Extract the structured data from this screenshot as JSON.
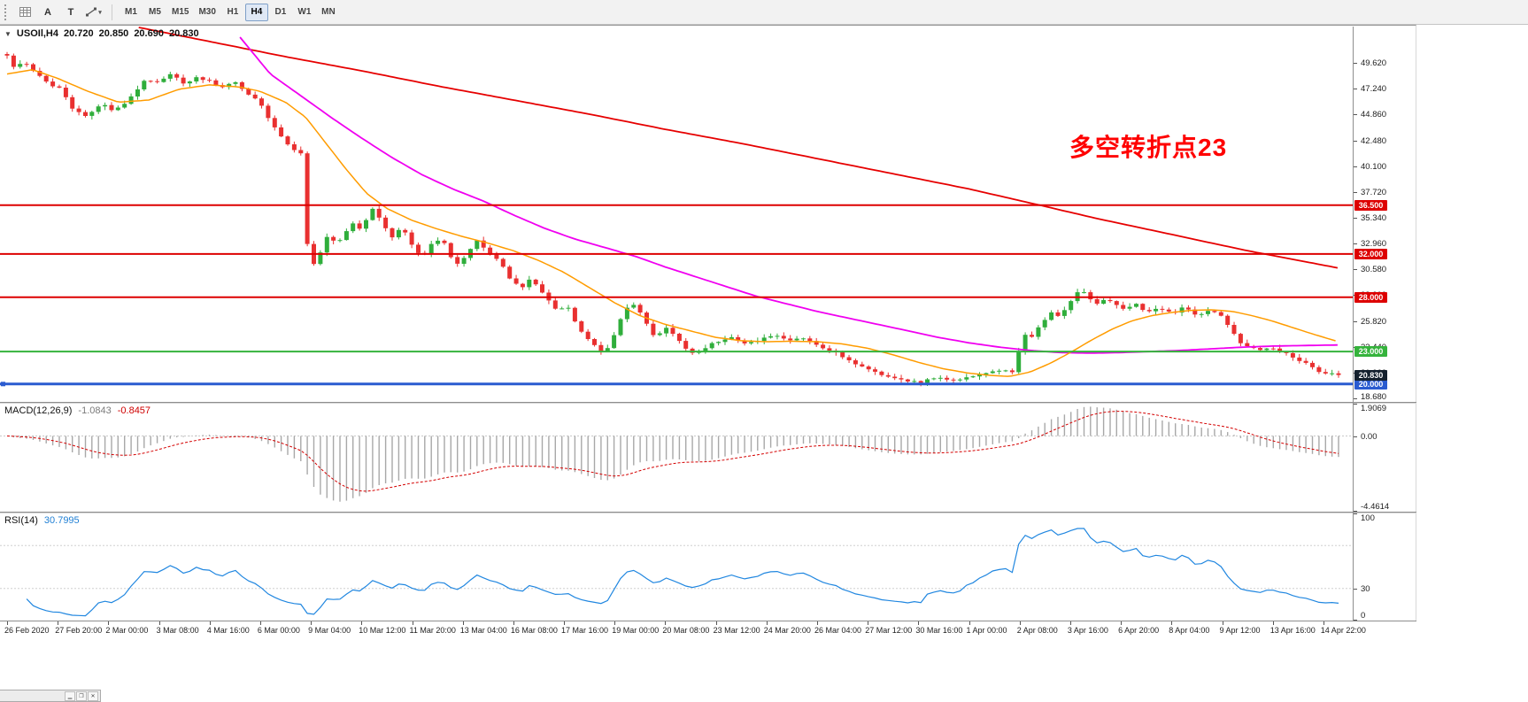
{
  "toolbar": {
    "tools": [
      {
        "name": "grid-tool",
        "label": ""
      },
      {
        "name": "a-tool",
        "label": "A"
      },
      {
        "name": "t-tool",
        "label": "T"
      },
      {
        "name": "shapes-dropdown",
        "label": ""
      }
    ],
    "timeframes": [
      {
        "label": "M1",
        "active": false
      },
      {
        "label": "M5",
        "active": false
      },
      {
        "label": "M15",
        "active": false
      },
      {
        "label": "M30",
        "active": false
      },
      {
        "label": "H1",
        "active": false
      },
      {
        "label": "H4",
        "active": true
      },
      {
        "label": "D1",
        "active": false
      },
      {
        "label": "W1",
        "active": false
      },
      {
        "label": "MN",
        "active": false
      }
    ]
  },
  "icons": {
    "symbol_caret": "▼",
    "dropdown_caret": "▾",
    "minimize": "▁",
    "restore": "❐",
    "close": "✕"
  },
  "symbol_line": {
    "symbol": "USOIl,H4",
    "open": "20.720",
    "high": "20.850",
    "low": "20.690",
    "close": "20.830"
  },
  "annotation": {
    "text": "多空转折点23",
    "color": "#ff0000"
  },
  "chart_data": {
    "type": "candlestick",
    "symbol": "USOIl",
    "timeframe": "H4",
    "price_axis": {
      "max": 52.98,
      "min": 18.35,
      "tick_labels": [
        "49.620",
        "47.240",
        "44.860",
        "42.480",
        "40.100",
        "37.720",
        "35.340",
        "32.960",
        "30.580",
        "28.200",
        "25.820",
        "23.440",
        "21.060",
        "18.680"
      ]
    },
    "time_labels": [
      "26 Feb 2020",
      "27 Feb 20:00",
      "2 Mar 00:00",
      "3 Mar 08:00",
      "4 Mar 16:00",
      "6 Mar 00:00",
      "9 Mar 04:00",
      "10 Mar 12:00",
      "11 Mar 20:00",
      "13 Mar 04:00",
      "16 Mar 08:00",
      "17 Mar 16:00",
      "19 Mar 00:00",
      "20 Mar 08:00",
      "23 Mar 12:00",
      "24 Mar 20:00",
      "26 Mar 04:00",
      "27 Mar 12:00",
      "30 Mar 16:00",
      "1 Apr 00:00",
      "2 Apr 08:00",
      "3 Apr 16:00",
      "6 Apr 20:00",
      "8 Apr 04:00",
      "9 Apr 12:00",
      "13 Apr 16:00",
      "14 Apr 22:00"
    ],
    "t_max": 26.3,
    "num_candles": 205,
    "candle_colors": {
      "up": "#2fae3b",
      "down": "#e93030"
    },
    "close_keypoints": [
      [
        0,
        50.3
      ],
      [
        0.15,
        49.2
      ],
      [
        0.35,
        49.7
      ],
      [
        0.6,
        48.6
      ],
      [
        0.85,
        47.6
      ],
      [
        1.05,
        47.2
      ],
      [
        1.3,
        45.3
      ],
      [
        1.55,
        44.7
      ],
      [
        1.85,
        45.9
      ],
      [
        2.1,
        45.1
      ],
      [
        2.4,
        46.2
      ],
      [
        2.7,
        47.9
      ],
      [
        3.0,
        47.8
      ],
      [
        3.25,
        48.7
      ],
      [
        3.5,
        47.7
      ],
      [
        3.75,
        48.3
      ],
      [
        4.0,
        47.9
      ],
      [
        4.25,
        47.3
      ],
      [
        4.5,
        47.9
      ],
      [
        4.75,
        46.8
      ],
      [
        5.0,
        45.9
      ],
      [
        5.25,
        43.8
      ],
      [
        5.55,
        42.0
      ],
      [
        5.8,
        41.3
      ],
      [
        5.95,
        31.6
      ],
      [
        6.1,
        30.9
      ],
      [
        6.3,
        33.6
      ],
      [
        6.55,
        33.0
      ],
      [
        6.8,
        34.9
      ],
      [
        7.0,
        34.3
      ],
      [
        7.2,
        36.2
      ],
      [
        7.4,
        35.0
      ],
      [
        7.6,
        33.5
      ],
      [
        7.8,
        34.6
      ],
      [
        8.0,
        32.9
      ],
      [
        8.2,
        31.6
      ],
      [
        8.45,
        33.3
      ],
      [
        8.65,
        32.9
      ],
      [
        8.85,
        30.9
      ],
      [
        9.05,
        31.7
      ],
      [
        9.25,
        33.3
      ],
      [
        9.5,
        32.1
      ],
      [
        9.75,
        31.3
      ],
      [
        9.95,
        29.6
      ],
      [
        10.15,
        28.9
      ],
      [
        10.35,
        29.7
      ],
      [
        10.6,
        28.3
      ],
      [
        10.85,
        26.8
      ],
      [
        11.05,
        27.3
      ],
      [
        11.3,
        25.1
      ],
      [
        11.55,
        23.7
      ],
      [
        11.8,
        22.9
      ],
      [
        12.0,
        24.5
      ],
      [
        12.2,
        26.9
      ],
      [
        12.4,
        27.4
      ],
      [
        12.6,
        25.7
      ],
      [
        12.8,
        24.3
      ],
      [
        13.0,
        25.2
      ],
      [
        13.25,
        24.1
      ],
      [
        13.5,
        22.7
      ],
      [
        13.75,
        23.3
      ],
      [
        14.0,
        23.9
      ],
      [
        14.3,
        24.4
      ],
      [
        14.6,
        23.7
      ],
      [
        14.9,
        24.1
      ],
      [
        15.15,
        24.6
      ],
      [
        15.4,
        24.0
      ],
      [
        15.7,
        24.3
      ],
      [
        16.0,
        23.5
      ],
      [
        16.3,
        23.1
      ],
      [
        16.6,
        22.3
      ],
      [
        16.9,
        21.6
      ],
      [
        17.2,
        21.0
      ],
      [
        17.5,
        20.6
      ],
      [
        17.8,
        20.3
      ],
      [
        18.05,
        20.1
      ],
      [
        18.3,
        20.6
      ],
      [
        18.6,
        20.3
      ],
      [
        18.9,
        20.5
      ],
      [
        19.15,
        20.8
      ],
      [
        19.45,
        21.1
      ],
      [
        19.7,
        21.3
      ],
      [
        19.9,
        21.1
      ],
      [
        20.05,
        24.8
      ],
      [
        20.2,
        24.2
      ],
      [
        20.4,
        25.3
      ],
      [
        20.6,
        26.6
      ],
      [
        20.8,
        26.2
      ],
      [
        21.0,
        27.5
      ],
      [
        21.2,
        28.7
      ],
      [
        21.35,
        28.2
      ],
      [
        21.5,
        27.3
      ],
      [
        21.7,
        27.9
      ],
      [
        21.9,
        27.4
      ],
      [
        22.1,
        26.9
      ],
      [
        22.3,
        27.4
      ],
      [
        22.5,
        26.6
      ],
      [
        22.75,
        26.9
      ],
      [
        23.0,
        26.5
      ],
      [
        23.25,
        27.1
      ],
      [
        23.5,
        26.3
      ],
      [
        23.75,
        26.9
      ],
      [
        23.95,
        26.4
      ],
      [
        24.15,
        25.2
      ],
      [
        24.35,
        23.9
      ],
      [
        24.55,
        23.4
      ],
      [
        24.8,
        23.1
      ],
      [
        25.0,
        23.3
      ],
      [
        25.25,
        22.9
      ],
      [
        25.5,
        22.3
      ],
      [
        25.75,
        21.6
      ],
      [
        26.0,
        21.0
      ],
      [
        26.3,
        20.83
      ]
    ],
    "horizontal_lines": [
      {
        "price": 36.5,
        "label": "36.500",
        "color": "#dd0000",
        "width": 2
      },
      {
        "price": 32.0,
        "label": "32.000",
        "color": "#dd0000",
        "width": 2
      },
      {
        "price": 28.0,
        "label": "28.000",
        "color": "#dd0000",
        "width": 2
      },
      {
        "price": 23.0,
        "label": "23.000",
        "color": "#35b33c",
        "width": 2
      },
      {
        "price": 20.0,
        "label": "20.000",
        "color": "#2a5bd0",
        "width": 3
      }
    ],
    "current_price": {
      "price": 20.83,
      "label": "20.830",
      "badge_color": "#14202e"
    },
    "moving_averages": [
      {
        "name": "ma-slow-red",
        "color": "#e60000",
        "width": 1.8,
        "points": [
          [
            2.6,
            52.9
          ],
          [
            4,
            51.6
          ],
          [
            5.5,
            50.2
          ],
          [
            7,
            48.9
          ],
          [
            8.5,
            47.5
          ],
          [
            10,
            46.2
          ],
          [
            11.5,
            44.9
          ],
          [
            13,
            43.5
          ],
          [
            14.5,
            42.2
          ],
          [
            16,
            40.8
          ],
          [
            17.5,
            39.4
          ],
          [
            19,
            38.0
          ],
          [
            20.4,
            36.5
          ],
          [
            21.5,
            35.3
          ],
          [
            22.5,
            34.3
          ],
          [
            23.5,
            33.3
          ],
          [
            24.5,
            32.3
          ],
          [
            25.4,
            31.5
          ],
          [
            26.3,
            30.7
          ]
        ]
      },
      {
        "name": "ma-mid-magenta",
        "color": "#f000f0",
        "width": 1.8,
        "points": [
          [
            4.6,
            52.0
          ],
          [
            5.2,
            48.6
          ],
          [
            5.8,
            46.6
          ],
          [
            6.4,
            44.6
          ],
          [
            7,
            42.7
          ],
          [
            7.6,
            40.9
          ],
          [
            8.2,
            39.3
          ],
          [
            8.8,
            38.0
          ],
          [
            9.4,
            36.9
          ],
          [
            10,
            35.6
          ],
          [
            10.6,
            34.4
          ],
          [
            11.2,
            33.4
          ],
          [
            11.8,
            32.6
          ],
          [
            12.4,
            31.8
          ],
          [
            13,
            30.8
          ],
          [
            13.6,
            29.9
          ],
          [
            14.2,
            29.0
          ],
          [
            14.8,
            28.1
          ],
          [
            15.4,
            27.4
          ],
          [
            16,
            26.7
          ],
          [
            16.6,
            26.1
          ],
          [
            17.2,
            25.5
          ],
          [
            17.8,
            24.9
          ],
          [
            18.4,
            24.3
          ],
          [
            19,
            23.8
          ],
          [
            19.6,
            23.4
          ],
          [
            20.2,
            23.1
          ],
          [
            20.8,
            22.9
          ],
          [
            21.4,
            22.85
          ],
          [
            22,
            22.9
          ],
          [
            22.6,
            23.0
          ],
          [
            23.2,
            23.1
          ],
          [
            23.8,
            23.25
          ],
          [
            24.4,
            23.4
          ],
          [
            25,
            23.5
          ],
          [
            25.6,
            23.55
          ],
          [
            26.3,
            23.6
          ]
        ]
      },
      {
        "name": "ma-fast-orange",
        "color": "#ff9c00",
        "width": 1.5,
        "points": [
          [
            0,
            48.6
          ],
          [
            0.5,
            49.0
          ],
          [
            1,
            48.2
          ],
          [
            1.6,
            47.0
          ],
          [
            2.2,
            46.0
          ],
          [
            2.8,
            46.2
          ],
          [
            3.4,
            47.2
          ],
          [
            4,
            47.6
          ],
          [
            4.6,
            47.4
          ],
          [
            5,
            47.0
          ],
          [
            5.5,
            46.0
          ],
          [
            5.9,
            44.6
          ],
          [
            6.3,
            42.2
          ],
          [
            6.7,
            39.8
          ],
          [
            7.1,
            37.6
          ],
          [
            7.5,
            36.2
          ],
          [
            8,
            35.1
          ],
          [
            8.5,
            34.3
          ],
          [
            9,
            33.6
          ],
          [
            9.5,
            33.0
          ],
          [
            10,
            32.3
          ],
          [
            10.5,
            31.4
          ],
          [
            11,
            30.3
          ],
          [
            11.5,
            28.9
          ],
          [
            12,
            27.5
          ],
          [
            12.5,
            26.3
          ],
          [
            13,
            25.5
          ],
          [
            13.5,
            24.9
          ],
          [
            14,
            24.3
          ],
          [
            14.5,
            24.0
          ],
          [
            15,
            23.9
          ],
          [
            15.5,
            23.95
          ],
          [
            16,
            23.9
          ],
          [
            16.5,
            23.7
          ],
          [
            17,
            23.3
          ],
          [
            17.5,
            22.7
          ],
          [
            18,
            22.0
          ],
          [
            18.5,
            21.4
          ],
          [
            19,
            21.0
          ],
          [
            19.4,
            20.8
          ],
          [
            19.8,
            20.7
          ],
          [
            20.2,
            21.1
          ],
          [
            20.6,
            21.9
          ],
          [
            21,
            22.9
          ],
          [
            21.4,
            24.0
          ],
          [
            21.8,
            25.0
          ],
          [
            22.2,
            25.8
          ],
          [
            22.6,
            26.3
          ],
          [
            23,
            26.6
          ],
          [
            23.4,
            26.8
          ],
          [
            23.8,
            26.85
          ],
          [
            24.2,
            26.7
          ],
          [
            24.6,
            26.3
          ],
          [
            25,
            25.8
          ],
          [
            25.4,
            25.2
          ],
          [
            25.8,
            24.6
          ],
          [
            26.3,
            23.9
          ]
        ]
      }
    ]
  },
  "macd": {
    "title": "MACD(12,26,9)",
    "value_main": "-1.0843",
    "value_signal": "-0.8457",
    "params": {
      "fast": 12,
      "slow": 26,
      "signal": 9
    },
    "axis": {
      "max": 1.9069,
      "min": -4.4614,
      "labels": [
        "1.9069",
        "0.00",
        "-4.4614"
      ]
    },
    "histogram_color": "#a8a8a8",
    "signal_color": "#d40000"
  },
  "rsi": {
    "title": "RSI(14)",
    "value": "30.7995",
    "period": 14,
    "axis_labels": [
      "100",
      "30",
      "0"
    ],
    "levels": [
      70,
      30
    ],
    "line_color": "#2187e0"
  }
}
